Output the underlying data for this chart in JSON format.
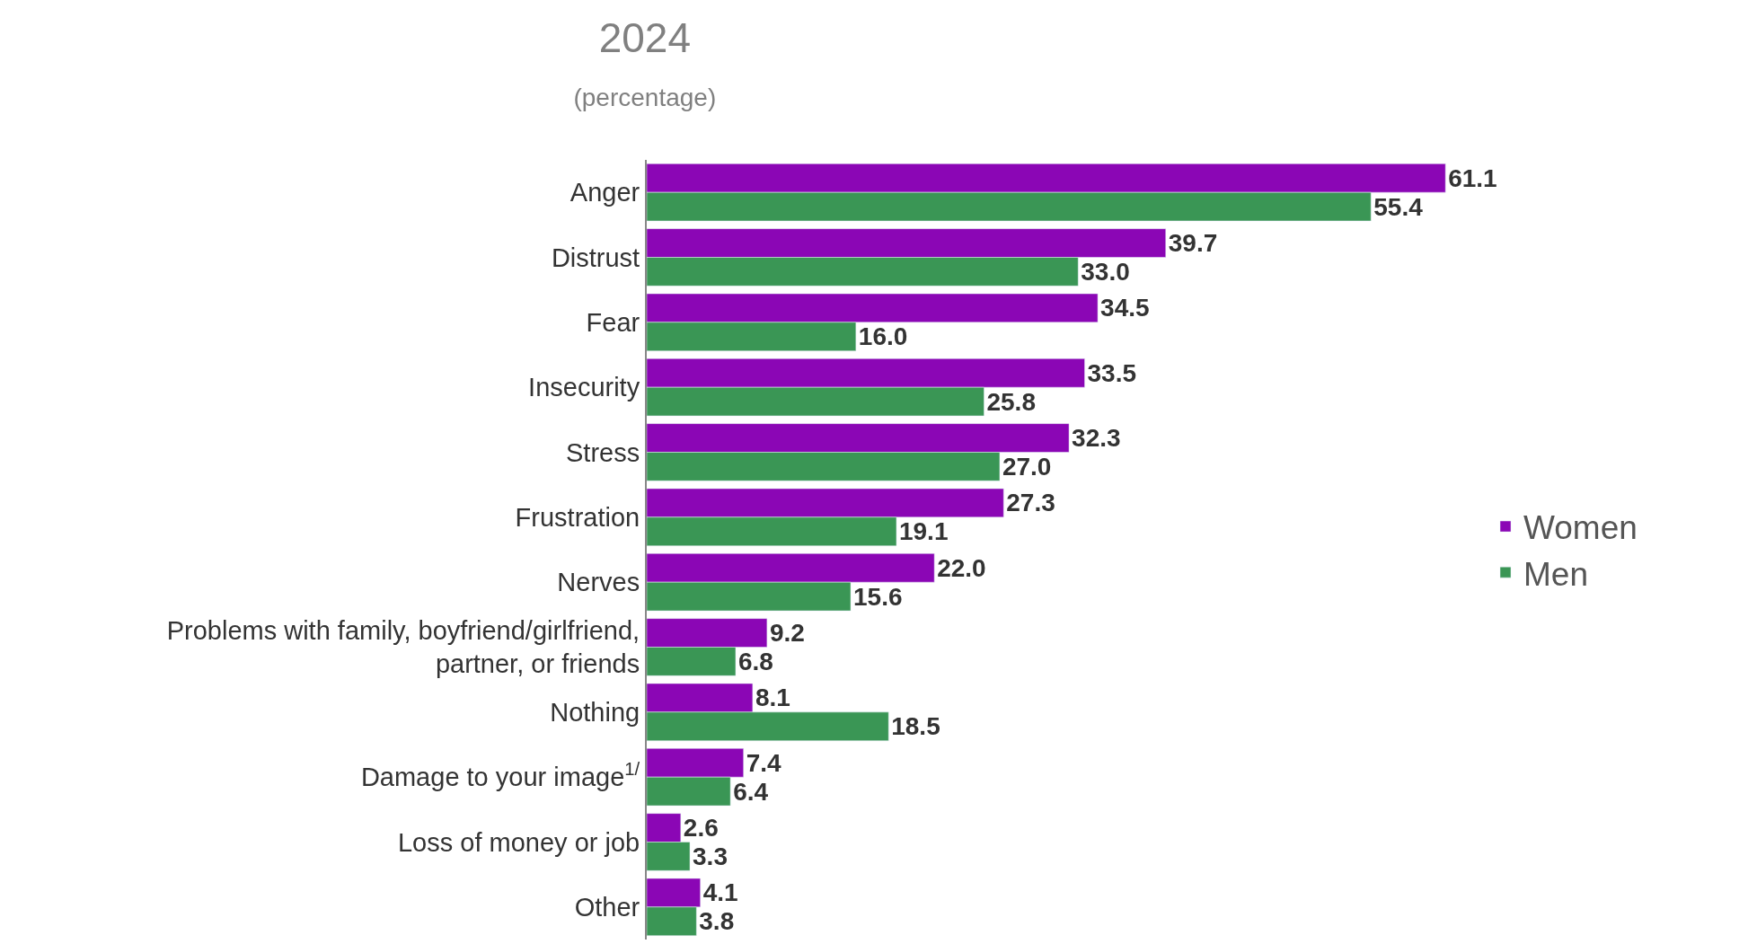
{
  "chart_data": {
    "type": "bar",
    "orientation": "horizontal",
    "title": "2024",
    "subtitle": "(percentage)",
    "categories": [
      "Anger",
      "Distrust",
      "Fear",
      "Insecurity",
      "Stress",
      "Frustration",
      "Nerves",
      "Problems with family, boyfriend/girlfriend,\npartner, or friends",
      "Nothing",
      "Damage to your image$^{1/}$",
      "Loss of money or job",
      "Other"
    ],
    "series": [
      {
        "name": "Women",
        "color": "#8b06b5",
        "values": [
          61.1,
          39.7,
          34.5,
          33.5,
          32.3,
          27.3,
          22.0,
          9.2,
          8.1,
          7.4,
          2.6,
          4.1
        ],
        "value_labels": [
          "61.1",
          "39.7",
          "34.5",
          "33.5",
          "32.3",
          "27.3",
          "22.0",
          "9.2",
          "8.1",
          "7.4",
          "2.6",
          "4.1"
        ]
      },
      {
        "name": "Men",
        "color": "#3a9655",
        "values": [
          55.4,
          33.0,
          16.0,
          25.8,
          27.0,
          19.1,
          15.6,
          6.8,
          18.5,
          6.4,
          3.3,
          3.8
        ],
        "value_labels": [
          "55.4",
          "33.0",
          "16.0",
          "25.8",
          "27.0",
          "19.1",
          "15.6",
          "6.8",
          "18.5",
          "6.4",
          "3.3",
          "3.8"
        ]
      }
    ],
    "legend": "right"
  }
}
